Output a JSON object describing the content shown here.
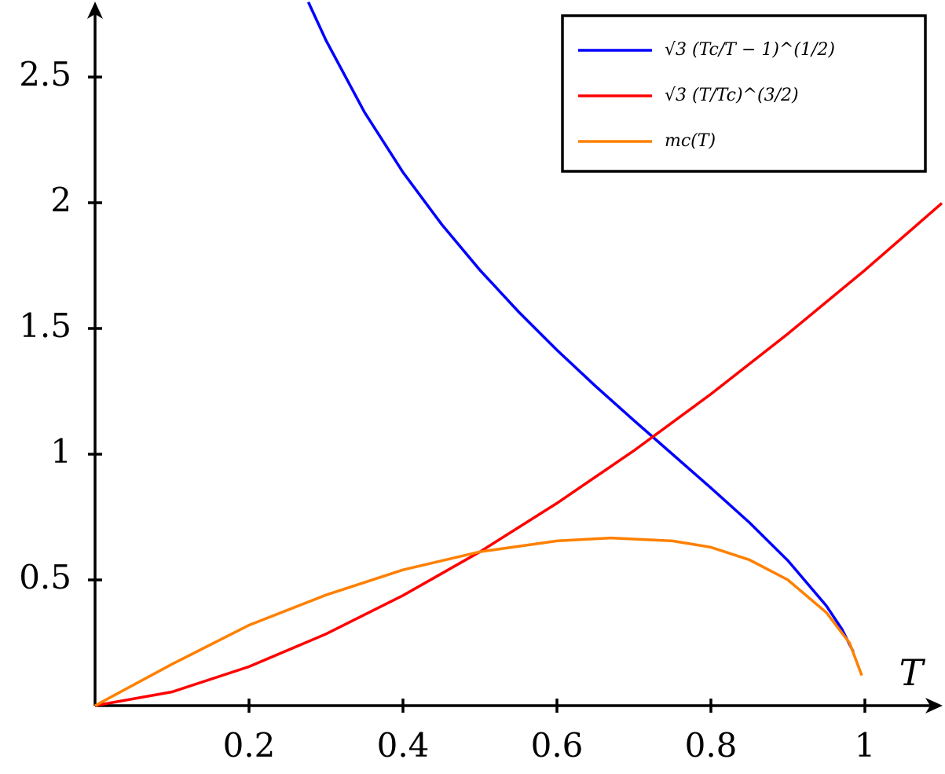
{
  "chart_data": {
    "type": "line",
    "x_label": "T",
    "xlim": [
      0,
      1.1
    ],
    "ylim": [
      0,
      2.8
    ],
    "xticks": [
      0.2,
      0.4,
      0.6,
      0.8,
      1
    ],
    "yticks": [
      0.5,
      1,
      1.5,
      2,
      2.5
    ],
    "grid": false,
    "legend": "upper right",
    "series": [
      {
        "name": "√3 (Tc/T − 1)^(1/2)",
        "color": "#0000ff",
        "x": [
          0.277,
          0.3,
          0.35,
          0.4,
          0.45,
          0.5,
          0.55,
          0.6,
          0.65,
          0.7,
          0.75,
          0.8,
          0.85,
          0.9,
          0.95,
          0.97,
          0.985
        ],
        "values": [
          2.798,
          2.646,
          2.36,
          2.121,
          1.915,
          1.732,
          1.567,
          1.414,
          1.271,
          1.134,
          1.0,
          0.866,
          0.728,
          0.577,
          0.397,
          0.305,
          0.214
        ]
      },
      {
        "name": "√3 (T/Tc)^(3/2)",
        "color": "#ff0000",
        "x": [
          0,
          0.1,
          0.2,
          0.3,
          0.4,
          0.5,
          0.6,
          0.7,
          0.8,
          0.9,
          1.0,
          1.1
        ],
        "values": [
          0,
          0.0548,
          0.155,
          0.285,
          0.438,
          0.612,
          0.805,
          1.014,
          1.239,
          1.479,
          1.732,
          1.998
        ]
      },
      {
        "name": "mc(T)",
        "color": "#ff8000",
        "x": [
          0,
          0.1,
          0.2,
          0.3,
          0.4,
          0.5,
          0.6,
          0.67,
          0.75,
          0.8,
          0.85,
          0.9,
          0.95,
          0.98,
          0.996
        ],
        "values": [
          0,
          0.165,
          0.32,
          0.44,
          0.54,
          0.612,
          0.655,
          0.667,
          0.655,
          0.63,
          0.58,
          0.5,
          0.37,
          0.25,
          0.12
        ]
      }
    ]
  }
}
